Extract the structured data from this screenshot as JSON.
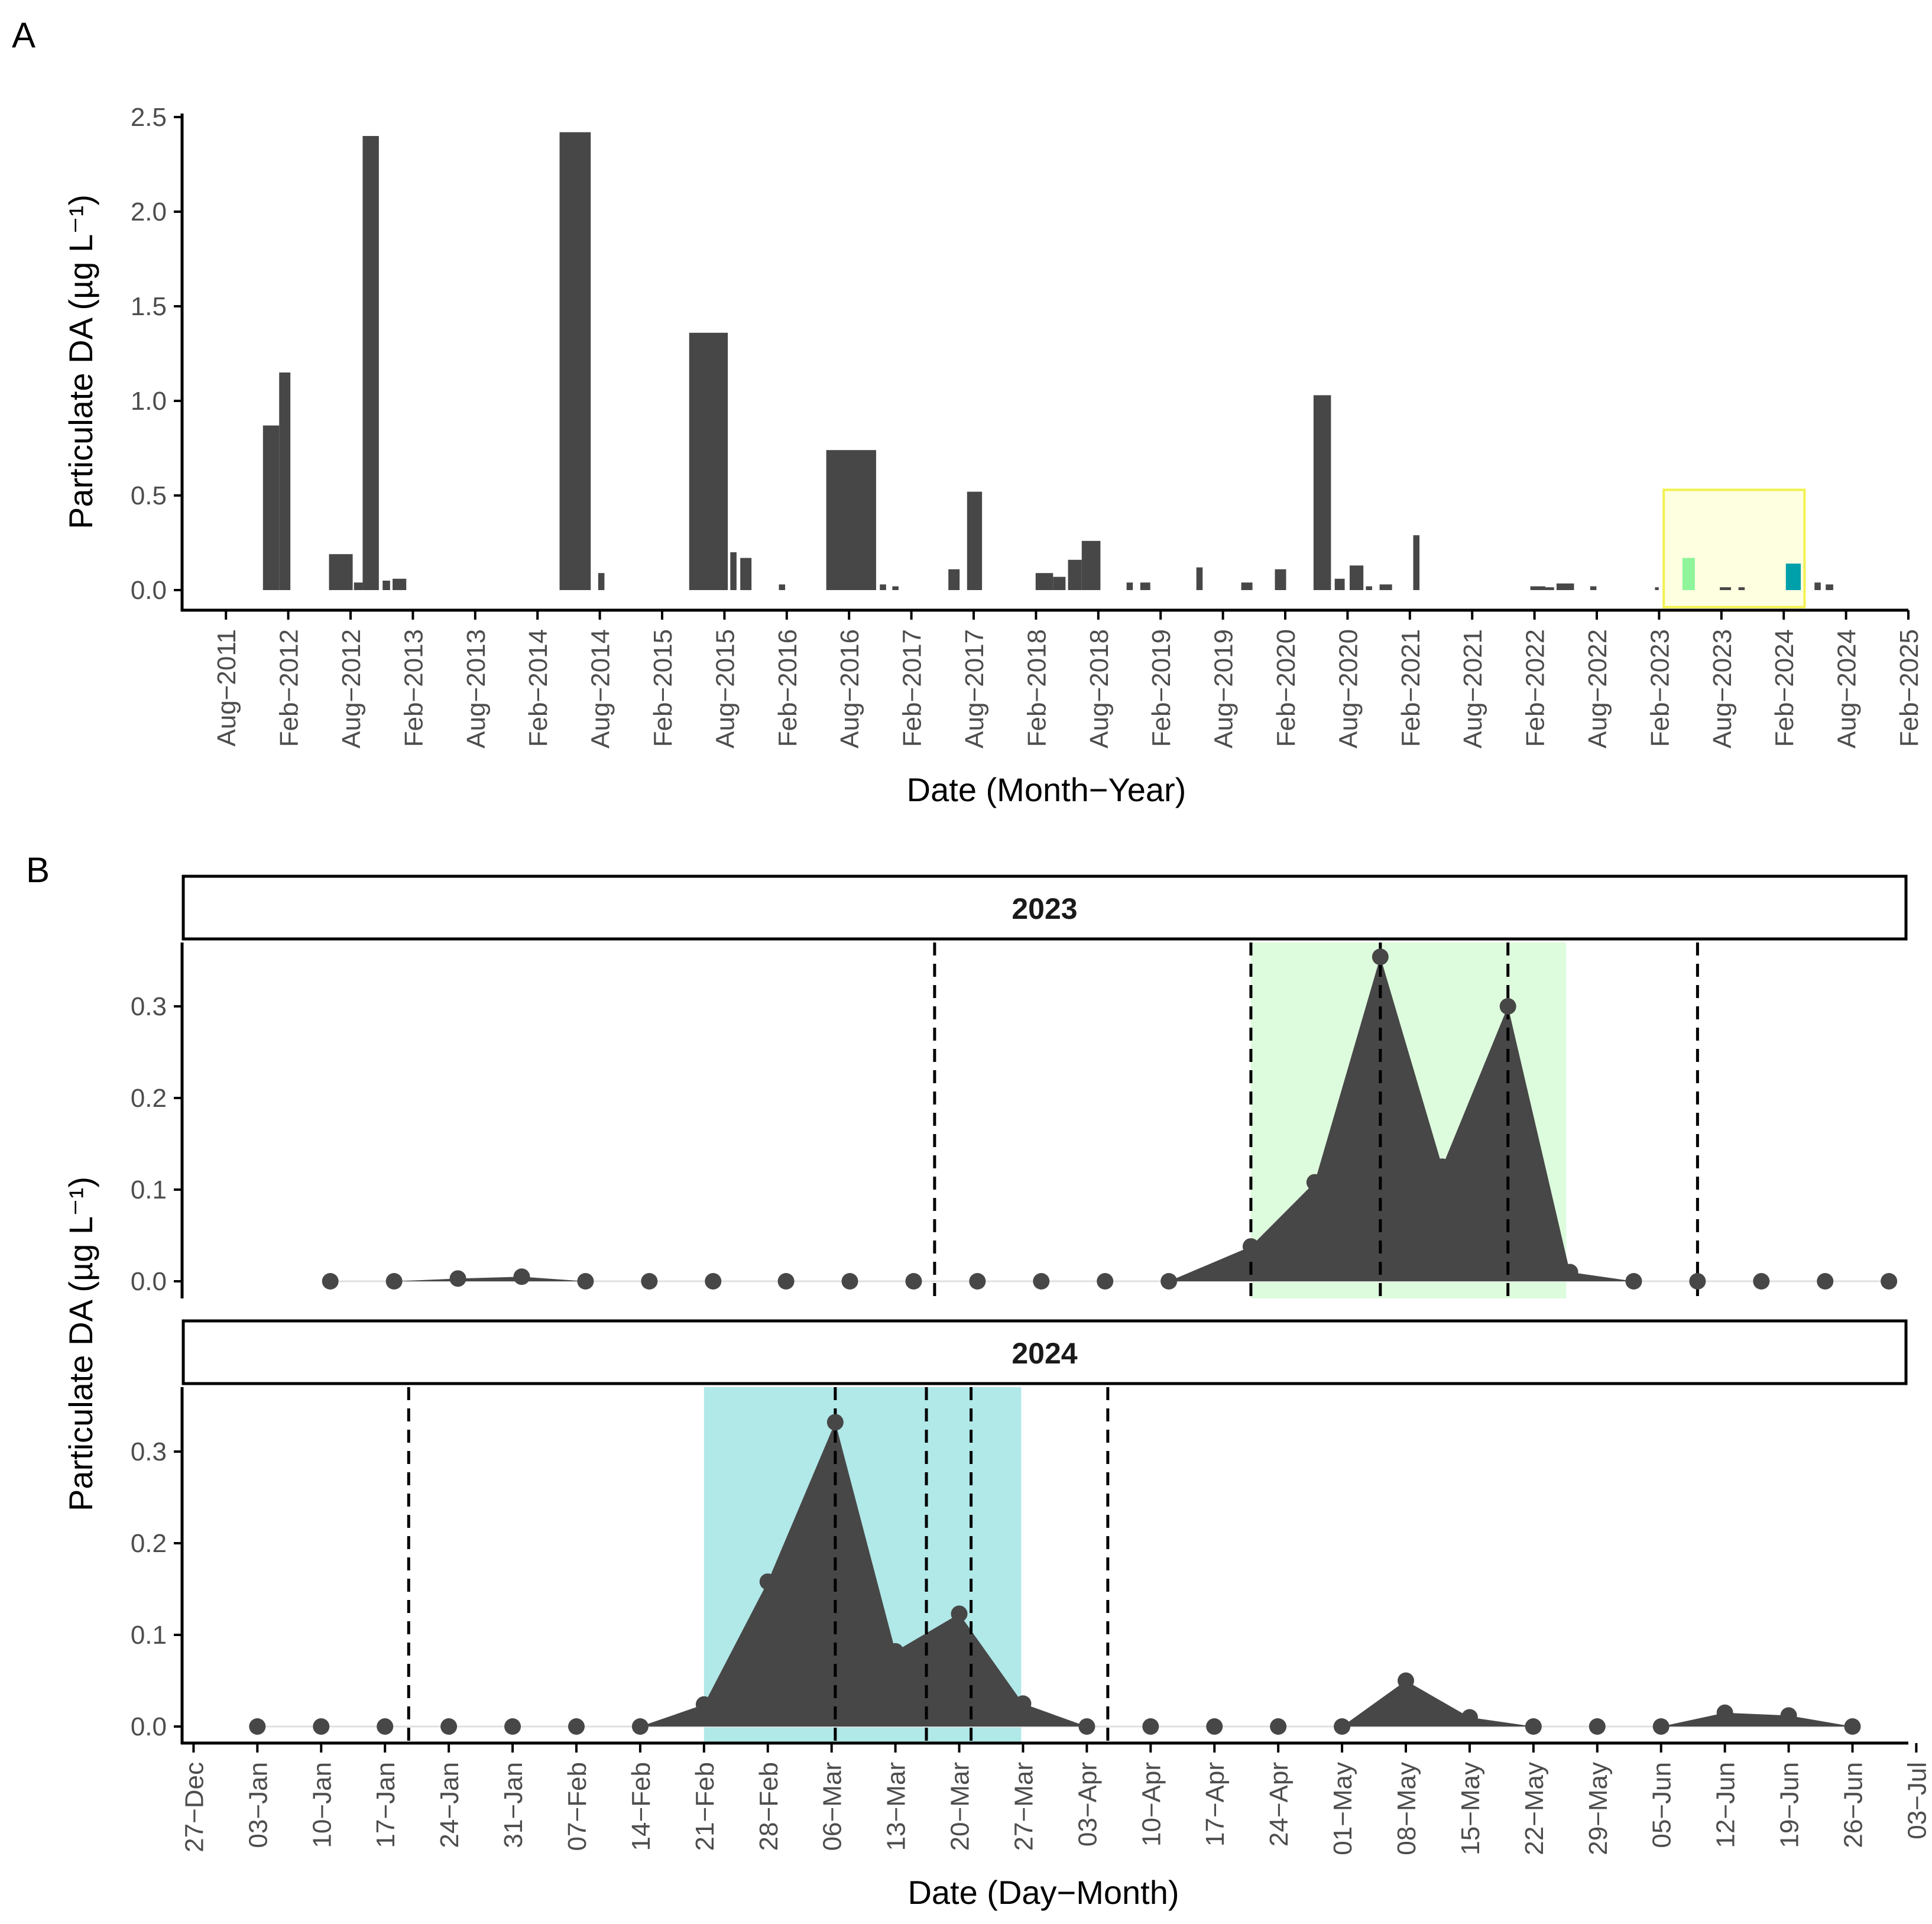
{
  "chart_data": [
    {
      "panel": "A",
      "type": "bar",
      "xlabel": "Date (Month−Year)",
      "ylabel": "Particulate DA (µg L⁻¹)",
      "ylim": [
        0,
        2.5
      ],
      "yticks": [
        0.0,
        0.5,
        1.0,
        1.5,
        2.0,
        2.5
      ],
      "ytick_labels": [
        "0.0",
        "0.5",
        "1.0",
        "1.5",
        "2.0",
        "2.5"
      ],
      "xlim": [
        2011.25,
        2025.083
      ],
      "xticks": [
        2011.583,
        2012.083,
        2012.583,
        2013.083,
        2013.583,
        2014.083,
        2014.583,
        2015.083,
        2015.583,
        2016.083,
        2016.583,
        2017.083,
        2017.583,
        2018.083,
        2018.583,
        2019.083,
        2019.583,
        2020.083,
        2020.583,
        2021.083,
        2021.583,
        2022.083,
        2022.583,
        2023.083,
        2023.583,
        2024.083,
        2024.583,
        2025.083
      ],
      "xtick_labels": [
        "Aug−2011",
        "Feb−2012",
        "Aug−2012",
        "Feb−2013",
        "Aug−2013",
        "Feb−2014",
        "Aug−2014",
        "Feb−2015",
        "Aug−2015",
        "Feb−2016",
        "Aug−2016",
        "Feb−2017",
        "Aug−2017",
        "Feb−2018",
        "Aug−2018",
        "Feb−2019",
        "Aug−2019",
        "Feb−2020",
        "Aug−2020",
        "Feb−2021",
        "Aug−2021",
        "Feb−2022",
        "Aug−2022",
        "Feb−2023",
        "Aug−2023",
        "Feb−2024",
        "Aug−2024",
        "Feb−2025"
      ],
      "bars": [
        {
          "x0": 2011.88,
          "x1": 2012.01,
          "value": 0.87
        },
        {
          "x0": 2012.01,
          "x1": 2012.1,
          "value": 1.15
        },
        {
          "x0": 2012.41,
          "x1": 2012.6,
          "value": 0.19
        },
        {
          "x0": 2012.61,
          "x1": 2012.68,
          "value": 0.04
        },
        {
          "x0": 2012.68,
          "x1": 2012.81,
          "value": 2.4
        },
        {
          "x0": 2012.84,
          "x1": 2012.9,
          "value": 0.05
        },
        {
          "x0": 2012.92,
          "x1": 2013.03,
          "value": 0.06
        },
        {
          "x0": 2014.26,
          "x1": 2014.51,
          "value": 2.42
        },
        {
          "x0": 2014.57,
          "x1": 2014.62,
          "value": 0.09
        },
        {
          "x0": 2015.3,
          "x1": 2015.61,
          "value": 1.36
        },
        {
          "x0": 2015.63,
          "x1": 2015.68,
          "value": 0.2
        },
        {
          "x0": 2015.71,
          "x1": 2015.8,
          "value": 0.17
        },
        {
          "x0": 2016.02,
          "x1": 2016.07,
          "value": 0.03
        },
        {
          "x0": 2016.4,
          "x1": 2016.8,
          "value": 0.74
        },
        {
          "x0": 2016.83,
          "x1": 2016.88,
          "value": 0.03
        },
        {
          "x0": 2016.93,
          "x1": 2016.98,
          "value": 0.02
        },
        {
          "x0": 2017.38,
          "x1": 2017.47,
          "value": 0.11
        },
        {
          "x0": 2017.53,
          "x1": 2017.65,
          "value": 0.52
        },
        {
          "x0": 2018.08,
          "x1": 2018.22,
          "value": 0.09
        },
        {
          "x0": 2018.22,
          "x1": 2018.32,
          "value": 0.07
        },
        {
          "x0": 2018.34,
          "x1": 2018.45,
          "value": 0.16
        },
        {
          "x0": 2018.45,
          "x1": 2018.6,
          "value": 0.26
        },
        {
          "x0": 2018.81,
          "x1": 2018.86,
          "value": 0.04
        },
        {
          "x0": 2018.92,
          "x1": 2019.0,
          "value": 0.04
        },
        {
          "x0": 2019.37,
          "x1": 2019.42,
          "value": 0.12
        },
        {
          "x0": 2019.73,
          "x1": 2019.82,
          "value": 0.04
        },
        {
          "x0": 2020.0,
          "x1": 2020.09,
          "value": 0.11
        },
        {
          "x0": 2020.31,
          "x1": 2020.45,
          "value": 1.03
        },
        {
          "x0": 2020.48,
          "x1": 2020.56,
          "value": 0.06
        },
        {
          "x0": 2020.6,
          "x1": 2020.71,
          "value": 0.13
        },
        {
          "x0": 2020.73,
          "x1": 2020.78,
          "value": 0.02
        },
        {
          "x0": 2020.84,
          "x1": 2020.94,
          "value": 0.03
        },
        {
          "x0": 2021.11,
          "x1": 2021.16,
          "value": 0.29
        },
        {
          "x0": 2022.05,
          "x1": 2022.17,
          "value": 0.02
        },
        {
          "x0": 2022.17,
          "x1": 2022.24,
          "value": 0.015
        },
        {
          "x0": 2022.26,
          "x1": 2022.4,
          "value": 0.035
        },
        {
          "x0": 2022.53,
          "x1": 2022.58,
          "value": 0.02
        },
        {
          "x0": 2023.05,
          "x1": 2023.08,
          "value": 0.015
        },
        {
          "x0": 2023.27,
          "x1": 2023.37,
          "value": 0.17,
          "color": "#8ef59a"
        },
        {
          "x0": 2023.57,
          "x1": 2023.66,
          "value": 0.015
        },
        {
          "x0": 2023.72,
          "x1": 2023.77,
          "value": 0.015
        },
        {
          "x0": 2024.1,
          "x1": 2024.22,
          "value": 0.14,
          "color": "#00a0ab"
        },
        {
          "x0": 2024.33,
          "x1": 2024.38,
          "value": 0.04
        },
        {
          "x0": 2024.42,
          "x1": 2024.48,
          "value": 0.03
        }
      ],
      "highlight_box": {
        "x0": 2023.12,
        "x1": 2024.25,
        "y0": -0.09,
        "y1": 0.53,
        "fill": "#fefee0",
        "stroke": "#f2f250"
      }
    },
    {
      "panel": "B",
      "type": "area",
      "xlabel": "Date (Day−Month)",
      "ylabel": "Particulate DA (µg L⁻¹)",
      "ylim": [
        -0.015,
        0.365
      ],
      "yticks": [
        0.0,
        0.1,
        0.2,
        0.3
      ],
      "ytick_labels": [
        "0.0",
        "0.1",
        "0.2",
        "0.3"
      ],
      "xlim": [
        -1,
        188
      ],
      "xticks": [
        0,
        7,
        14,
        21,
        28,
        35,
        42,
        49,
        56,
        63,
        70,
        77,
        84,
        91,
        98,
        105,
        112,
        119,
        126,
        133,
        140,
        147,
        154,
        161,
        168,
        175,
        182,
        189
      ],
      "xtick_labels": [
        "27−Dec",
        "03−Jan",
        "10−Jan",
        "17−Jan",
        "24−Jan",
        "31−Jan",
        "07−Feb",
        "14−Feb",
        "21−Feb",
        "28−Feb",
        "06−Mar",
        "13−Mar",
        "20−Mar",
        "27−Mar",
        "03−Apr",
        "10−Apr",
        "17−Apr",
        "24−Apr",
        "01−May",
        "08−May",
        "15−May",
        "22−May",
        "29−May",
        "05−Jun",
        "12−Jun",
        "19−Jun",
        "26−Jun",
        "03−Jul"
      ],
      "facets": [
        {
          "label": "2023",
          "shade": {
            "x0": 116,
            "x1": 150.6,
            "color": "#ddfbdd"
          },
          "vlines": [
            81.3,
            116,
            130.2,
            144.2,
            165.0
          ],
          "points": [
            [
              15,
              0
            ],
            [
              22,
              0
            ],
            [
              29,
              0.003
            ],
            [
              36,
              0.005
            ],
            [
              43,
              0
            ],
            [
              50,
              0
            ],
            [
              57,
              0
            ],
            [
              65,
              0
            ],
            [
              72,
              0
            ],
            [
              79,
              0
            ],
            [
              86,
              0
            ],
            [
              93,
              0
            ],
            [
              100,
              0
            ],
            [
              107,
              0
            ],
            [
              116,
              0.038
            ],
            [
              123,
              0.108
            ],
            [
              130.2,
              0.354
            ],
            [
              137,
              0.125
            ],
            [
              144.2,
              0.3
            ],
            [
              151,
              0.01
            ],
            [
              158,
              0
            ],
            [
              165,
              0
            ],
            [
              172,
              0
            ],
            [
              179,
              0
            ],
            [
              186,
              0
            ]
          ]
        },
        {
          "label": "2024",
          "shade": {
            "x0": 56,
            "x1": 90.8,
            "color": "#b1e8e8"
          },
          "vlines": [
            23.6,
            70.4,
            80.4,
            85.3,
            100.3
          ],
          "points": [
            [
              7,
              0
            ],
            [
              14,
              0
            ],
            [
              21,
              0
            ],
            [
              28,
              0
            ],
            [
              35,
              0
            ],
            [
              42,
              0
            ],
            [
              49,
              0
            ],
            [
              56,
              0.024
            ],
            [
              63,
              0.158
            ],
            [
              70.4,
              0.332
            ],
            [
              77,
              0.082
            ],
            [
              84,
              0.123
            ],
            [
              91,
              0.025
            ],
            [
              98,
              0
            ],
            [
              105,
              0
            ],
            [
              112,
              0
            ],
            [
              119,
              0
            ],
            [
              126,
              0
            ],
            [
              133,
              0.05
            ],
            [
              140,
              0.01
            ],
            [
              147,
              0
            ],
            [
              154,
              0
            ],
            [
              161,
              0
            ],
            [
              168,
              0.015
            ],
            [
              175,
              0.012
            ],
            [
              182,
              0
            ]
          ]
        }
      ]
    }
  ]
}
